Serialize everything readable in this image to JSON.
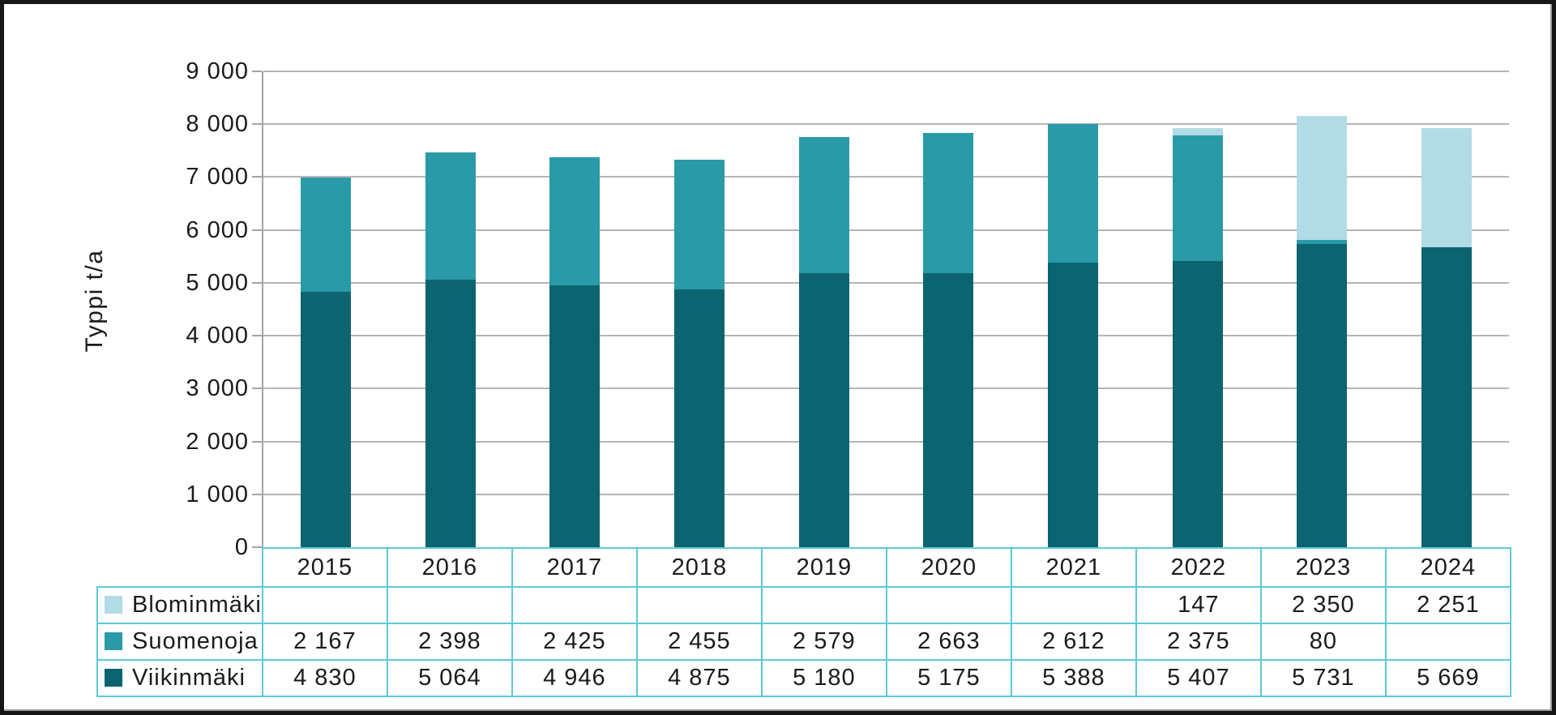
{
  "chart_data": {
    "type": "bar",
    "stacked": true,
    "title": "",
    "xlabel": "",
    "ylabel": "Typpi t/a",
    "ylim": [
      0,
      9000
    ],
    "ytick_step": 1000,
    "grid": true,
    "legend_position": "table-left",
    "categories": [
      "2015",
      "2016",
      "2017",
      "2018",
      "2019",
      "2020",
      "2021",
      "2022",
      "2023",
      "2024"
    ],
    "yticks": [
      {
        "value": 0,
        "label": "0"
      },
      {
        "value": 1000,
        "label": "1 000"
      },
      {
        "value": 2000,
        "label": "2 000"
      },
      {
        "value": 3000,
        "label": "3 000"
      },
      {
        "value": 4000,
        "label": "4 000"
      },
      {
        "value": 5000,
        "label": "5 000"
      },
      {
        "value": 6000,
        "label": "6 000"
      },
      {
        "value": 7000,
        "label": "7 000"
      },
      {
        "value": 8000,
        "label": "8 000"
      },
      {
        "value": 9000,
        "label": "9 000"
      }
    ],
    "series": [
      {
        "name": "Blominmäki",
        "color": "#b2dbe5",
        "values": [
          null,
          null,
          null,
          null,
          null,
          null,
          null,
          147,
          2350,
          2251
        ],
        "labels": [
          "",
          "",
          "",
          "",
          "",
          "",
          "",
          "147",
          "2 350",
          "2 251"
        ]
      },
      {
        "name": "Suomenoja",
        "color": "#2a9aa8",
        "values": [
          2167,
          2398,
          2425,
          2455,
          2579,
          2663,
          2612,
          2375,
          80,
          null
        ],
        "labels": [
          "2 167",
          "2 398",
          "2 425",
          "2 455",
          "2 579",
          "2 663",
          "2 612",
          "2 375",
          "80",
          ""
        ]
      },
      {
        "name": "Viikinmäki",
        "color": "#0c6470",
        "values": [
          4830,
          5064,
          4946,
          4875,
          5180,
          5175,
          5388,
          5407,
          5731,
          5669
        ],
        "labels": [
          "4 830",
          "5 064",
          "4 946",
          "4 875",
          "5 180",
          "5 175",
          "5 388",
          "5 407",
          "5 731",
          "5 669"
        ]
      }
    ],
    "stack_order_bottom_to_top": [
      "Viikinmäki",
      "Suomenoja",
      "Blominmäki"
    ]
  },
  "colors": {
    "grid": "#b7b4b7",
    "axis": "#a6a3a6",
    "table_border": "#5fc9d9",
    "text": "#1b1b1b",
    "frame": "#161616"
  }
}
